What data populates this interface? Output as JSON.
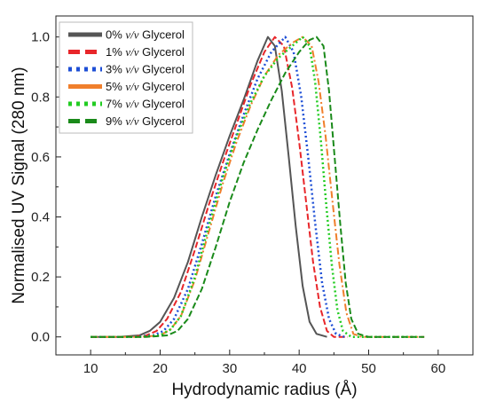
{
  "chart_data": {
    "type": "line",
    "xlabel": "Hydrodynamic radius (Å)",
    "ylabel": "Normalised UV Signal (280 nm)",
    "xlim": [
      5,
      65
    ],
    "ylim": [
      -0.06,
      1.07
    ],
    "xticks": [
      "10",
      "20",
      "30",
      "40",
      "50",
      "60"
    ],
    "yticks": [
      "0.0",
      "0.2",
      "0.4",
      "0.6",
      "0.8",
      "1.0"
    ],
    "grid": false,
    "legend_position": "top-left",
    "series": [
      {
        "name_parts": [
          "0% ",
          "v/v",
          " Glycerol"
        ],
        "color": "#555555",
        "style": "solid",
        "points": [
          [
            10,
            0
          ],
          [
            14,
            0
          ],
          [
            17,
            0.005
          ],
          [
            18.5,
            0.02
          ],
          [
            20,
            0.05
          ],
          [
            22,
            0.13
          ],
          [
            24,
            0.25
          ],
          [
            26,
            0.4
          ],
          [
            28,
            0.54
          ],
          [
            30,
            0.67
          ],
          [
            32,
            0.79
          ],
          [
            34,
            0.92
          ],
          [
            35.5,
            1.0
          ],
          [
            36.5,
            0.97
          ],
          [
            37.5,
            0.82
          ],
          [
            38.5,
            0.6
          ],
          [
            39.5,
            0.37
          ],
          [
            40.5,
            0.17
          ],
          [
            41.5,
            0.05
          ],
          [
            42.5,
            0.01
          ],
          [
            44,
            0
          ]
        ]
      },
      {
        "name_parts": [
          "1% ",
          "v/v",
          " Glycerol"
        ],
        "color": "#e8262a",
        "style": "dash",
        "points": [
          [
            10,
            0
          ],
          [
            15,
            0
          ],
          [
            18,
            0.005
          ],
          [
            19.5,
            0.02
          ],
          [
            21,
            0.06
          ],
          [
            23,
            0.15
          ],
          [
            25,
            0.29
          ],
          [
            27,
            0.44
          ],
          [
            29,
            0.58
          ],
          [
            31,
            0.71
          ],
          [
            33,
            0.84
          ],
          [
            35,
            0.95
          ],
          [
            36.5,
            1.0
          ],
          [
            37.8,
            0.97
          ],
          [
            39,
            0.83
          ],
          [
            40,
            0.65
          ],
          [
            41,
            0.45
          ],
          [
            42,
            0.25
          ],
          [
            43,
            0.1
          ],
          [
            44,
            0.02
          ],
          [
            45,
            0
          ],
          [
            47,
            0
          ]
        ]
      },
      {
        "name_parts": [
          "3% ",
          "v/v",
          " Glycerol"
        ],
        "color": "#1e4fd6",
        "style": "dot",
        "points": [
          [
            10,
            0
          ],
          [
            16,
            0
          ],
          [
            19,
            0.005
          ],
          [
            20.5,
            0.02
          ],
          [
            22,
            0.06
          ],
          [
            24,
            0.16
          ],
          [
            26,
            0.31
          ],
          [
            28,
            0.47
          ],
          [
            30,
            0.61
          ],
          [
            32,
            0.74
          ],
          [
            34,
            0.86
          ],
          [
            36,
            0.95
          ],
          [
            38,
            1.0
          ],
          [
            39.2,
            0.95
          ],
          [
            40.3,
            0.8
          ],
          [
            41.3,
            0.6
          ],
          [
            42.3,
            0.38
          ],
          [
            43.3,
            0.18
          ],
          [
            44.3,
            0.06
          ],
          [
            45.3,
            0.01
          ],
          [
            46.5,
            0
          ]
        ]
      },
      {
        "name_parts": [
          "5% ",
          "v/v",
          " Glycerol"
        ],
        "color": "#f07f2c",
        "style": "dashdot",
        "points": [
          [
            10,
            0
          ],
          [
            17,
            0
          ],
          [
            20,
            0.005
          ],
          [
            21.5,
            0.025
          ],
          [
            23,
            0.07
          ],
          [
            25,
            0.19
          ],
          [
            27,
            0.35
          ],
          [
            29,
            0.51
          ],
          [
            31,
            0.65
          ],
          [
            33,
            0.77
          ],
          [
            35,
            0.87
          ],
          [
            37,
            0.94
          ],
          [
            39,
            0.98
          ],
          [
            40.5,
            1.0
          ],
          [
            41.8,
            0.97
          ],
          [
            42.8,
            0.85
          ],
          [
            43.8,
            0.67
          ],
          [
            44.8,
            0.45
          ],
          [
            45.8,
            0.24
          ],
          [
            46.8,
            0.08
          ],
          [
            47.8,
            0.01
          ],
          [
            49,
            0
          ],
          [
            58,
            0
          ]
        ]
      },
      {
        "name_parts": [
          "7% ",
          "v/v",
          " Glycerol"
        ],
        "color": "#22cc22",
        "style": "dot",
        "points": [
          [
            10,
            0
          ],
          [
            17,
            0
          ],
          [
            20,
            0.005
          ],
          [
            21.5,
            0.025
          ],
          [
            23,
            0.07
          ],
          [
            25,
            0.2
          ],
          [
            27,
            0.37
          ],
          [
            29,
            0.53
          ],
          [
            31,
            0.67
          ],
          [
            33,
            0.78
          ],
          [
            35,
            0.87
          ],
          [
            37,
            0.93
          ],
          [
            39,
            0.97
          ],
          [
            40.5,
            1.0
          ],
          [
            41.5,
            0.97
          ],
          [
            42.3,
            0.85
          ],
          [
            43.1,
            0.66
          ],
          [
            43.9,
            0.44
          ],
          [
            44.7,
            0.24
          ],
          [
            45.5,
            0.09
          ],
          [
            46.3,
            0.02
          ],
          [
            47.5,
            0
          ],
          [
            57,
            0
          ]
        ]
      },
      {
        "name_parts": [
          "9% ",
          "v/v",
          " Glycerol"
        ],
        "color": "#1a8a1a",
        "style": "dash",
        "points": [
          [
            10,
            0
          ],
          [
            18,
            0
          ],
          [
            21,
            0.005
          ],
          [
            22.5,
            0.02
          ],
          [
            24,
            0.06
          ],
          [
            26,
            0.16
          ],
          [
            28,
            0.3
          ],
          [
            30,
            0.45
          ],
          [
            32,
            0.58
          ],
          [
            34,
            0.69
          ],
          [
            36,
            0.79
          ],
          [
            38,
            0.88
          ],
          [
            40,
            0.95
          ],
          [
            41.5,
            0.99
          ],
          [
            42.5,
            1.0
          ],
          [
            43.5,
            0.97
          ],
          [
            44.3,
            0.82
          ],
          [
            45.1,
            0.6
          ],
          [
            45.9,
            0.38
          ],
          [
            46.7,
            0.18
          ],
          [
            47.5,
            0.06
          ],
          [
            48.5,
            0.01
          ],
          [
            50,
            0
          ],
          [
            58,
            0
          ]
        ]
      }
    ]
  }
}
